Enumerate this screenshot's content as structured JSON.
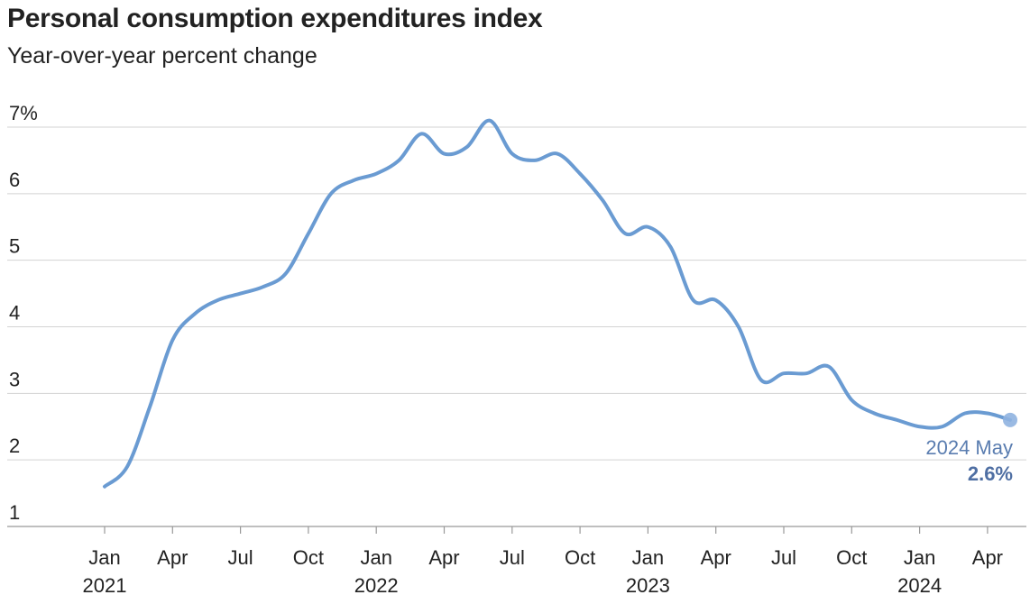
{
  "chart_data": {
    "type": "line",
    "title": "Personal consumption expenditures index",
    "subtitle": "Year-over-year percent change",
    "ylim": [
      1,
      7
    ],
    "yticks": [
      {
        "value": 7,
        "label": "7%"
      },
      {
        "value": 6,
        "label": "6"
      },
      {
        "value": 5,
        "label": "5"
      },
      {
        "value": 4,
        "label": "4"
      },
      {
        "value": 3,
        "label": "3"
      },
      {
        "value": 2,
        "label": "2"
      },
      {
        "value": 1,
        "label": "1"
      }
    ],
    "xticks": [
      {
        "date": "2021-01",
        "label": "Jan",
        "year": "2021"
      },
      {
        "date": "2021-04",
        "label": "Apr",
        "year": ""
      },
      {
        "date": "2021-07",
        "label": "Jul",
        "year": ""
      },
      {
        "date": "2021-10",
        "label": "Oct",
        "year": ""
      },
      {
        "date": "2022-01",
        "label": "Jan",
        "year": "2022"
      },
      {
        "date": "2022-04",
        "label": "Apr",
        "year": ""
      },
      {
        "date": "2022-07",
        "label": "Jul",
        "year": ""
      },
      {
        "date": "2022-10",
        "label": "Oct",
        "year": ""
      },
      {
        "date": "2023-01",
        "label": "Jan",
        "year": "2023"
      },
      {
        "date": "2023-04",
        "label": "Apr",
        "year": ""
      },
      {
        "date": "2023-07",
        "label": "Jul",
        "year": ""
      },
      {
        "date": "2023-10",
        "label": "Oct",
        "year": ""
      },
      {
        "date": "2024-01",
        "label": "Jan",
        "year": "2024"
      },
      {
        "date": "2024-04",
        "label": "Apr",
        "year": ""
      }
    ],
    "grid": true,
    "series": [
      {
        "color": "#6a9bd2",
        "points": [
          [
            "2021-01",
            1.6
          ],
          [
            "2021-02",
            1.9
          ],
          [
            "2021-03",
            2.8
          ],
          [
            "2021-04",
            3.8
          ],
          [
            "2021-05",
            4.2
          ],
          [
            "2021-06",
            4.4
          ],
          [
            "2021-07",
            4.5
          ],
          [
            "2021-08",
            4.6
          ],
          [
            "2021-09",
            4.8
          ],
          [
            "2021-10",
            5.4
          ],
          [
            "2021-11",
            6.0
          ],
          [
            "2021-12",
            6.2
          ],
          [
            "2022-01",
            6.3
          ],
          [
            "2022-02",
            6.5
          ],
          [
            "2022-03",
            6.9
          ],
          [
            "2022-04",
            6.6
          ],
          [
            "2022-05",
            6.7
          ],
          [
            "2022-06",
            7.1
          ],
          [
            "2022-07",
            6.6
          ],
          [
            "2022-08",
            6.5
          ],
          [
            "2022-09",
            6.6
          ],
          [
            "2022-10",
            6.3
          ],
          [
            "2022-11",
            5.9
          ],
          [
            "2022-12",
            5.4
          ],
          [
            "2023-01",
            5.5
          ],
          [
            "2023-02",
            5.2
          ],
          [
            "2023-03",
            4.4
          ],
          [
            "2023-04",
            4.4
          ],
          [
            "2023-05",
            4.0
          ],
          [
            "2023-06",
            3.2
          ],
          [
            "2023-07",
            3.3
          ],
          [
            "2023-08",
            3.3
          ],
          [
            "2023-09",
            3.4
          ],
          [
            "2023-10",
            2.9
          ],
          [
            "2023-11",
            2.7
          ],
          [
            "2023-12",
            2.6
          ],
          [
            "2024-01",
            2.5
          ],
          [
            "2024-02",
            2.5
          ],
          [
            "2024-03",
            2.7
          ],
          [
            "2024-04",
            2.7
          ],
          [
            "2024-05",
            2.6
          ]
        ]
      }
    ],
    "annotation": {
      "date": "2024-05",
      "label": "2024 May",
      "value_label": "2.6%",
      "value": 2.6
    }
  }
}
